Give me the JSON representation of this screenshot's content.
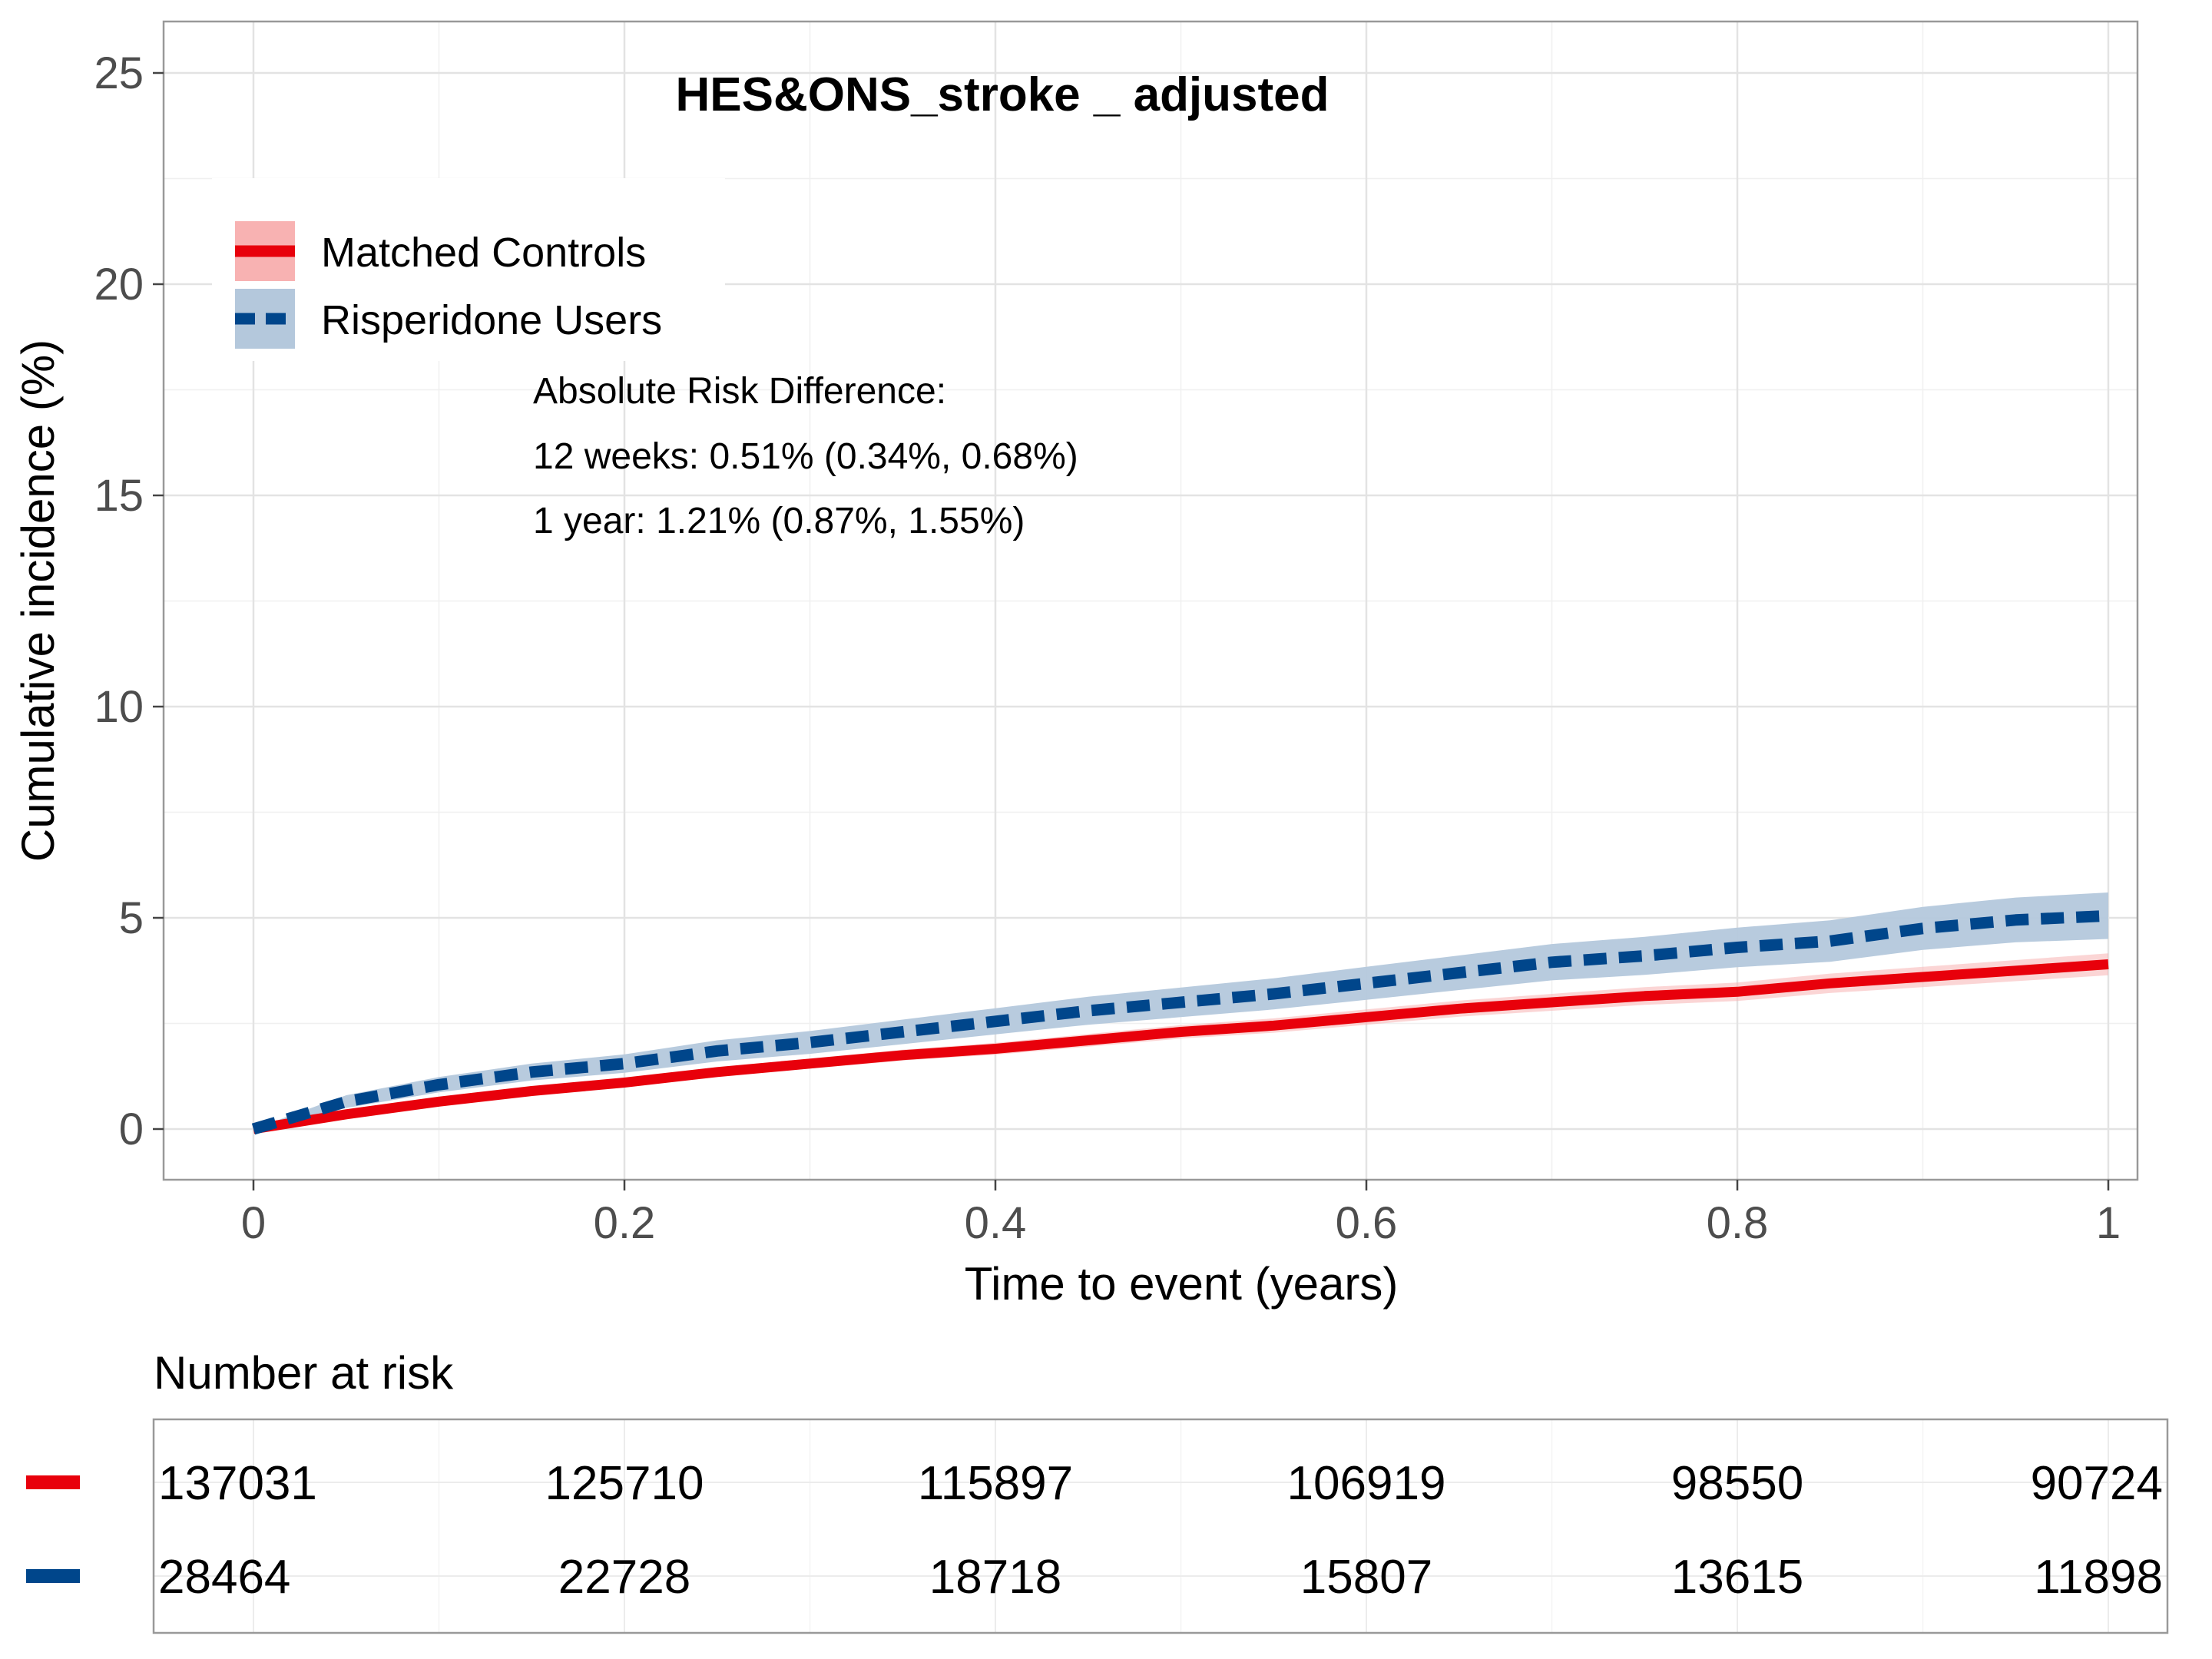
{
  "chart_data": {
    "type": "line",
    "title": "HES&ONS_stroke _ adjusted",
    "xlabel": "Time to event (years)",
    "ylabel": "Cumulative incidence (%)",
    "xlim": [
      0,
      1
    ],
    "ylim": [
      0,
      25
    ],
    "x_ticks": [
      0,
      0.2,
      0.4,
      0.6,
      0.8,
      1
    ],
    "x_tick_labels": [
      "0",
      "0.2",
      "0.4",
      "0.6",
      "0.8",
      "1"
    ],
    "y_ticks": [
      0,
      5,
      10,
      15,
      20,
      25
    ],
    "y_tick_labels": [
      "0",
      "5",
      "10",
      "15",
      "20",
      "25"
    ],
    "grid": true,
    "legend": {
      "position": "top-left",
      "entries": [
        "Matched Controls",
        "Risperidone Users"
      ]
    },
    "series": [
      {
        "name": "Matched Controls",
        "color": "#e8000b",
        "line_style": "solid",
        "x": [
          0,
          0.05,
          0.1,
          0.15,
          0.2,
          0.25,
          0.3,
          0.35,
          0.4,
          0.45,
          0.5,
          0.55,
          0.6,
          0.65,
          0.7,
          0.75,
          0.8,
          0.85,
          0.9,
          0.95,
          1.0
        ],
        "y": [
          0,
          0.35,
          0.65,
          0.9,
          1.1,
          1.35,
          1.55,
          1.75,
          1.9,
          2.1,
          2.3,
          2.45,
          2.65,
          2.85,
          3.0,
          3.15,
          3.25,
          3.45,
          3.6,
          3.75,
          3.9
        ],
        "ci_lower": [
          0,
          0.3,
          0.58,
          0.82,
          1.0,
          1.24,
          1.43,
          1.62,
          1.76,
          1.95,
          2.14,
          2.28,
          2.47,
          2.66,
          2.8,
          2.94,
          3.03,
          3.22,
          3.36,
          3.5,
          3.64
        ],
        "ci_upper": [
          0,
          0.4,
          0.72,
          0.98,
          1.2,
          1.46,
          1.67,
          1.88,
          2.04,
          2.25,
          2.46,
          2.62,
          2.83,
          3.04,
          3.2,
          3.36,
          3.47,
          3.68,
          3.84,
          4.0,
          4.16
        ]
      },
      {
        "name": "Risperidone Users",
        "color": "#00468b",
        "ci_color": "#b4c8dc",
        "line_style": "dashed",
        "x": [
          0,
          0.05,
          0.1,
          0.15,
          0.2,
          0.25,
          0.3,
          0.35,
          0.4,
          0.45,
          0.5,
          0.55,
          0.6,
          0.65,
          0.7,
          0.75,
          0.8,
          0.85,
          0.9,
          0.95,
          1.0
        ],
        "y": [
          0,
          0.65,
          1.05,
          1.35,
          1.55,
          1.85,
          2.05,
          2.3,
          2.55,
          2.8,
          3.0,
          3.2,
          3.45,
          3.7,
          3.95,
          4.1,
          4.3,
          4.45,
          4.75,
          4.95,
          5.05
        ],
        "ci_lower": [
          0,
          0.5,
          0.87,
          1.15,
          1.33,
          1.6,
          1.78,
          2.01,
          2.24,
          2.47,
          2.65,
          2.83,
          3.06,
          3.29,
          3.52,
          3.65,
          3.83,
          3.96,
          4.24,
          4.42,
          4.5
        ],
        "ci_upper": [
          0,
          0.8,
          1.23,
          1.55,
          1.77,
          2.1,
          2.32,
          2.59,
          2.86,
          3.13,
          3.35,
          3.57,
          3.84,
          4.11,
          4.38,
          4.55,
          4.77,
          4.94,
          5.26,
          5.48,
          5.6
        ]
      }
    ],
    "annotations": [
      "Absolute Risk Difference:",
      "12 weeks: 0.51% (0.34%, 0.68%)",
      "1 year: 1.21% (0.87%, 1.55%)"
    ],
    "risk_table": {
      "title": "Number at risk",
      "times": [
        0,
        0.2,
        0.4,
        0.6,
        0.8,
        1
      ],
      "rows": [
        {
          "name": "Matched Controls",
          "color": "#e8000b",
          "values": [
            "137031",
            "125710",
            "115897",
            "106919",
            "98550",
            "90724"
          ]
        },
        {
          "name": "Risperidone Users",
          "color": "#00468b",
          "values": [
            "28464",
            "22728",
            "18718",
            "15807",
            "13615",
            "11898"
          ]
        }
      ]
    }
  }
}
